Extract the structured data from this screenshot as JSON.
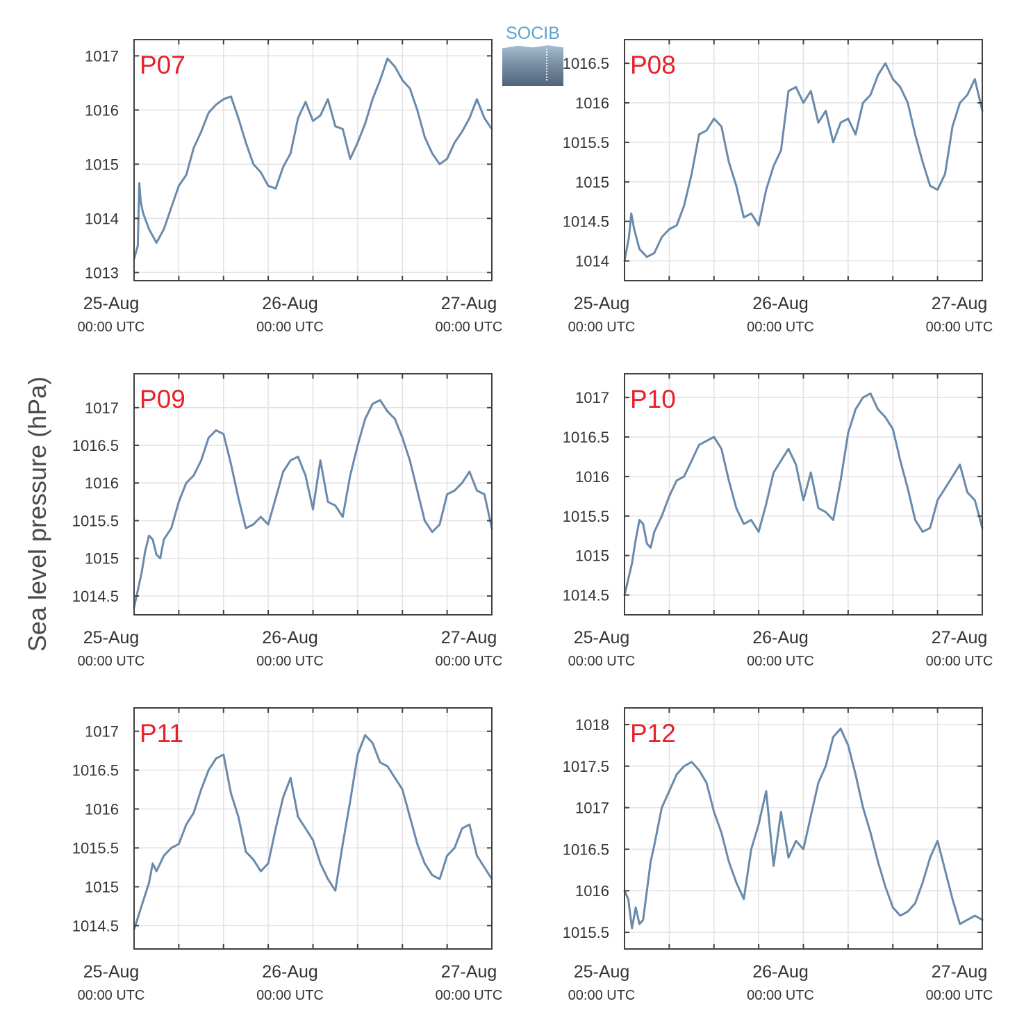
{
  "logo": {
    "text": "SOCIB",
    "color": "#5ea3cc"
  },
  "figure": {
    "ylabel": "Sea level pressure (hPa)",
    "line_color": "#6a8aab",
    "station_label_color": "#e8202a",
    "x_ticks": [
      {
        "date": "25-Aug",
        "time": "00:00 UTC"
      },
      {
        "date": "26-Aug",
        "time": "00:00 UTC"
      },
      {
        "date": "27-Aug",
        "time": "00:00 UTC"
      }
    ]
  },
  "chart_data": [
    {
      "type": "line",
      "title": "P07",
      "xlabel": "",
      "ylabel": "Sea level pressure (hPa)",
      "xlim": [
        0,
        48
      ],
      "ylim": [
        1012.85,
        1017.3
      ],
      "grid": true,
      "yticks": [
        "1013",
        "1014",
        "1015",
        "1016",
        "1017"
      ],
      "x": [
        0,
        0.5,
        0.7,
        0.9,
        1.2,
        2,
        3,
        4,
        5,
        6,
        7,
        8,
        9,
        10,
        11,
        12,
        13,
        14,
        15,
        16,
        17,
        18,
        19,
        20,
        21,
        22,
        23,
        24,
        25,
        26,
        27,
        28,
        29,
        30,
        31,
        32,
        33,
        34,
        35,
        36,
        37,
        38,
        39,
        40,
        41,
        42,
        43,
        44,
        45,
        46,
        47,
        48
      ],
      "y": [
        1013.25,
        1013.5,
        1014.65,
        1014.3,
        1014.1,
        1013.8,
        1013.55,
        1013.8,
        1014.2,
        1014.6,
        1014.8,
        1015.3,
        1015.6,
        1015.95,
        1016.1,
        1016.2,
        1016.25,
        1015.85,
        1015.4,
        1015.0,
        1014.85,
        1014.6,
        1014.55,
        1014.95,
        1015.2,
        1015.85,
        1016.15,
        1015.8,
        1015.9,
        1016.2,
        1015.7,
        1015.65,
        1015.1,
        1015.4,
        1015.75,
        1016.2,
        1016.55,
        1016.95,
        1016.8,
        1016.55,
        1016.4,
        1016.0,
        1015.5,
        1015.2,
        1015.0,
        1015.1,
        1015.4,
        1015.6,
        1015.85,
        1016.2,
        1015.85,
        1015.65
      ]
    },
    {
      "type": "line",
      "title": "P08",
      "xlabel": "",
      "ylabel": "Sea level pressure (hPa)",
      "xlim": [
        0,
        48
      ],
      "ylim": [
        1013.75,
        1016.8
      ],
      "grid": true,
      "yticks": [
        "1014",
        "1014.5",
        "1015",
        "1015.5",
        "1016",
        "1016.5"
      ],
      "x": [
        0,
        0.6,
        0.9,
        1.3,
        2,
        3,
        4,
        5,
        6,
        7,
        8,
        9,
        10,
        11,
        12,
        13,
        14,
        15,
        16,
        17,
        18,
        19,
        20,
        21,
        22,
        23,
        24,
        25,
        26,
        27,
        28,
        29,
        30,
        31,
        32,
        33,
        34,
        35,
        36,
        37,
        38,
        39,
        40,
        41,
        42,
        43,
        44,
        45,
        46,
        47,
        48
      ],
      "y": [
        1014.0,
        1014.3,
        1014.6,
        1014.4,
        1014.15,
        1014.05,
        1014.1,
        1014.3,
        1014.4,
        1014.45,
        1014.7,
        1015.1,
        1015.6,
        1015.65,
        1015.8,
        1015.7,
        1015.25,
        1014.95,
        1014.55,
        1014.6,
        1014.45,
        1014.9,
        1015.2,
        1015.4,
        1016.15,
        1016.2,
        1016.0,
        1016.15,
        1015.75,
        1015.9,
        1015.5,
        1015.75,
        1015.8,
        1015.6,
        1016.0,
        1016.1,
        1016.35,
        1016.5,
        1016.3,
        1016.2,
        1016.0,
        1015.6,
        1015.25,
        1014.95,
        1014.9,
        1015.1,
        1015.7,
        1016.0,
        1016.1,
        1016.3,
        1015.9
      ]
    },
    {
      "type": "line",
      "title": "P09",
      "xlabel": "",
      "ylabel": "Sea level pressure (hPa)",
      "xlim": [
        0,
        48
      ],
      "ylim": [
        1014.25,
        1017.45
      ],
      "grid": true,
      "yticks": [
        "1014.5",
        "1015",
        "1015.5",
        "1016",
        "1016.5",
        "1017"
      ],
      "x": [
        0,
        1,
        1.5,
        2,
        2.5,
        3,
        3.5,
        4,
        5,
        6,
        7,
        8,
        9,
        10,
        11,
        12,
        13,
        14,
        15,
        16,
        17,
        18,
        19,
        20,
        21,
        22,
        23,
        24,
        25,
        26,
        27,
        28,
        29,
        30,
        31,
        32,
        33,
        34,
        35,
        36,
        37,
        38,
        39,
        40,
        41,
        42,
        43,
        44,
        45,
        46,
        47,
        48
      ],
      "y": [
        1014.35,
        1014.8,
        1015.1,
        1015.3,
        1015.25,
        1015.05,
        1015.0,
        1015.25,
        1015.4,
        1015.75,
        1016.0,
        1016.1,
        1016.3,
        1016.6,
        1016.7,
        1016.65,
        1016.25,
        1015.8,
        1015.4,
        1015.45,
        1015.55,
        1015.45,
        1015.8,
        1016.15,
        1016.3,
        1016.35,
        1016.1,
        1015.65,
        1016.3,
        1015.75,
        1015.7,
        1015.55,
        1016.1,
        1016.5,
        1016.85,
        1017.05,
        1017.1,
        1016.95,
        1016.85,
        1016.6,
        1016.3,
        1015.9,
        1015.5,
        1015.35,
        1015.45,
        1015.85,
        1015.9,
        1016.0,
        1016.15,
        1015.9,
        1015.85,
        1015.4
      ]
    },
    {
      "type": "line",
      "title": "P10",
      "xlabel": "",
      "ylabel": "Sea level pressure (hPa)",
      "xlim": [
        0,
        48
      ],
      "ylim": [
        1014.25,
        1017.3
      ],
      "grid": true,
      "yticks": [
        "1014.5",
        "1015",
        "1015.5",
        "1016",
        "1016.5",
        "1017"
      ],
      "x": [
        0,
        1,
        1.5,
        2,
        2.5,
        3,
        3.5,
        4,
        5,
        6,
        7,
        8,
        9,
        10,
        11,
        12,
        13,
        14,
        15,
        16,
        17,
        18,
        19,
        20,
        21,
        22,
        23,
        24,
        25,
        26,
        27,
        28,
        29,
        30,
        31,
        32,
        33,
        34,
        35,
        36,
        37,
        38,
        39,
        40,
        41,
        42,
        43,
        44,
        45,
        46,
        47,
        48
      ],
      "y": [
        1014.5,
        1014.9,
        1015.2,
        1015.45,
        1015.4,
        1015.15,
        1015.1,
        1015.3,
        1015.5,
        1015.75,
        1015.95,
        1016.0,
        1016.2,
        1016.4,
        1016.45,
        1016.5,
        1016.35,
        1015.95,
        1015.6,
        1015.4,
        1015.45,
        1015.3,
        1015.65,
        1016.05,
        1016.2,
        1016.35,
        1016.15,
        1015.7,
        1016.05,
        1015.6,
        1015.55,
        1015.45,
        1015.95,
        1016.55,
        1016.85,
        1017.0,
        1017.05,
        1016.85,
        1016.75,
        1016.6,
        1016.2,
        1015.85,
        1015.45,
        1015.3,
        1015.35,
        1015.7,
        1015.85,
        1016.0,
        1016.15,
        1015.8,
        1015.7,
        1015.35
      ]
    },
    {
      "type": "line",
      "title": "P11",
      "xlabel": "",
      "ylabel": "Sea level pressure (hPa)",
      "xlim": [
        0,
        48
      ],
      "ylim": [
        1014.2,
        1017.3
      ],
      "grid": true,
      "yticks": [
        "1014.5",
        "1015",
        "1015.5",
        "1016",
        "1016.5",
        "1017"
      ],
      "x": [
        0,
        1,
        2,
        2.5,
        3,
        3.5,
        4,
        5,
        6,
        7,
        8,
        9,
        10,
        11,
        12,
        12.5,
        13,
        14,
        15,
        16,
        17,
        18,
        19,
        20,
        21,
        22,
        23,
        24,
        25,
        26,
        27,
        28,
        29,
        30,
        31,
        32,
        33,
        34,
        35,
        36,
        37,
        38,
        39,
        40,
        41,
        42,
        43,
        44,
        45,
        46,
        47,
        48
      ],
      "y": [
        1014.45,
        1014.75,
        1015.05,
        1015.3,
        1015.2,
        1015.3,
        1015.4,
        1015.5,
        1015.55,
        1015.8,
        1015.95,
        1016.25,
        1016.5,
        1016.65,
        1016.7,
        1016.45,
        1016.2,
        1015.9,
        1015.45,
        1015.35,
        1015.2,
        1015.3,
        1015.75,
        1016.15,
        1016.4,
        1015.9,
        1015.75,
        1015.6,
        1015.3,
        1015.1,
        1014.95,
        1015.55,
        1016.1,
        1016.7,
        1016.95,
        1016.85,
        1016.6,
        1016.55,
        1016.4,
        1016.25,
        1015.9,
        1015.55,
        1015.3,
        1015.15,
        1015.1,
        1015.4,
        1015.5,
        1015.75,
        1015.8,
        1015.4,
        1015.25,
        1015.1
      ]
    },
    {
      "type": "line",
      "title": "P12",
      "xlabel": "",
      "ylabel": "Sea level pressure (hPa)",
      "xlim": [
        0,
        48
      ],
      "ylim": [
        1015.3,
        1018.2
      ],
      "grid": true,
      "yticks": [
        "1015.5",
        "1016",
        "1016.5",
        "1017",
        "1017.5",
        "1018"
      ],
      "x": [
        0,
        0.5,
        1,
        1.5,
        2,
        2.5,
        3,
        3.5,
        4,
        5,
        6,
        7,
        8,
        9,
        10,
        11,
        12,
        13,
        14,
        15,
        16,
        17,
        18,
        19,
        20,
        21,
        22,
        23,
        24,
        25,
        26,
        27,
        28,
        29,
        30,
        31,
        32,
        33,
        34,
        35,
        36,
        37,
        38,
        39,
        40,
        41,
        42,
        43,
        44,
        45,
        46,
        47,
        48
      ],
      "y": [
        1016.0,
        1015.9,
        1015.55,
        1015.8,
        1015.6,
        1015.65,
        1016.0,
        1016.35,
        1016.55,
        1017.0,
        1017.2,
        1017.4,
        1017.5,
        1017.55,
        1017.45,
        1017.3,
        1016.95,
        1016.7,
        1016.35,
        1016.1,
        1015.9,
        1016.5,
        1016.8,
        1017.2,
        1016.3,
        1016.95,
        1016.4,
        1016.6,
        1016.5,
        1016.9,
        1017.3,
        1017.5,
        1017.85,
        1017.95,
        1017.75,
        1017.4,
        1017.0,
        1016.7,
        1016.35,
        1016.05,
        1015.8,
        1015.7,
        1015.75,
        1015.85,
        1016.1,
        1016.4,
        1016.6,
        1016.25,
        1015.9,
        1015.6,
        1015.65,
        1015.7,
        1015.65
      ]
    }
  ]
}
